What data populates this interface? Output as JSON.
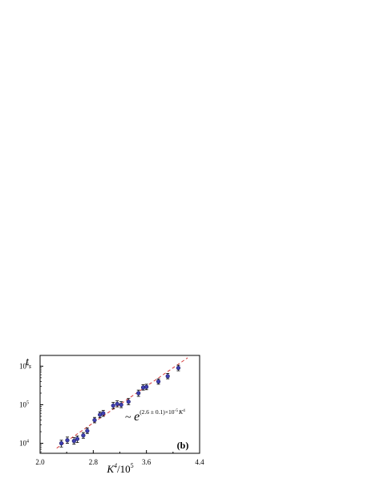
{
  "chart_data": {
    "type": "scatter",
    "xlabel": {
      "base": "K",
      "sup": "4",
      "rest": "/10",
      "rest_sup": "5"
    },
    "ylabel": {
      "base": "t",
      "sub": "s"
    },
    "xlim": [
      2.0,
      4.4
    ],
    "ylim": [
      5500,
      1900000
    ],
    "yscale": "log",
    "x_ticks": [
      2.0,
      2.8,
      3.6,
      4.4
    ],
    "x_tick_labels": [
      "2.0",
      "2.8",
      "3.6",
      "4.4"
    ],
    "y_ticks": [
      10000,
      100000,
      1000000
    ],
    "y_tick_labels": [
      {
        "base": "10",
        "exp": "4"
      },
      {
        "base": "10",
        "exp": "5"
      },
      {
        "base": "10",
        "exp": "6"
      }
    ],
    "panel_label": "(b)",
    "annotation": {
      "prefix": "~ ",
      "base": "e",
      "exponent_text": "(2.6 ± 0.1)×10",
      "exponent_sup": "-5",
      "exponent_tail": "K",
      "exponent_tail_sup": "4"
    },
    "series": [
      {
        "marker_color": "#3f3fb0",
        "x": [
          2.32,
          2.41,
          2.51,
          2.56,
          2.65,
          2.71,
          2.82,
          2.9,
          2.95,
          3.1,
          3.16,
          3.22,
          3.33,
          3.48,
          3.55,
          3.6,
          3.78,
          3.92,
          4.08
        ],
        "y": [
          10000,
          12000,
          11500,
          13000,
          16000,
          21000,
          40000,
          55000,
          60000,
          95000,
          105000,
          100000,
          120000,
          200000,
          280000,
          290000,
          400000,
          550000,
          900000
        ],
        "err_low": [
          8000,
          10000,
          9500,
          10500,
          13500,
          18000,
          34000,
          46000,
          50000,
          78000,
          88000,
          84000,
          100000,
          165000,
          240000,
          245000,
          340000,
          470000,
          760000
        ],
        "err_high": [
          12000,
          14500,
          14000,
          15500,
          19000,
          25000,
          47000,
          65000,
          71000,
          115000,
          126000,
          120000,
          145000,
          240000,
          330000,
          340000,
          470000,
          650000,
          1060000
        ]
      }
    ],
    "fit_line": {
      "color": "#d43a3a",
      "x": [
        2.25,
        4.22
      ],
      "y": [
        7500,
        1650000
      ]
    }
  }
}
